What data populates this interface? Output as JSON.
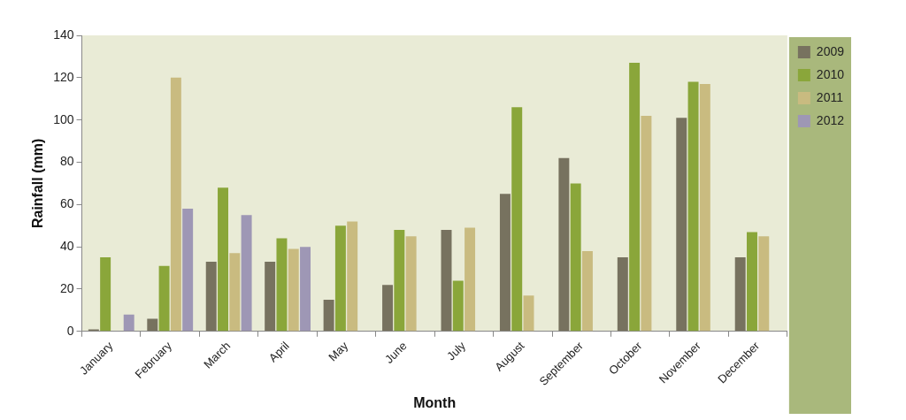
{
  "chart_data": {
    "type": "bar",
    "x_label": "Month",
    "y_label": "Rainfall (mm)",
    "categories": [
      "January",
      "February",
      "March",
      "April",
      "May",
      "June",
      "July",
      "August",
      "September",
      "October",
      "November",
      "December"
    ],
    "series": [
      {
        "name": "2009",
        "color": "#77725f",
        "values": [
          1,
          6,
          33,
          33,
          15,
          22,
          48,
          65,
          82,
          35,
          101,
          35
        ]
      },
      {
        "name": "2010",
        "color": "#8aa63a",
        "values": [
          35,
          31,
          68,
          44,
          50,
          48,
          24,
          106,
          70,
          127,
          118,
          47
        ]
      },
      {
        "name": "2011",
        "color": "#c9bb80",
        "values": [
          null,
          120,
          37,
          39,
          52,
          45,
          49,
          17,
          38,
          102,
          117,
          45
        ]
      },
      {
        "name": "2012",
        "color": "#9e97b5",
        "values": [
          8,
          58,
          55,
          40,
          null,
          null,
          null,
          null,
          null,
          null,
          null,
          null
        ]
      }
    ],
    "ylim": [
      0,
      140
    ],
    "yticks": [
      0,
      20,
      40,
      60,
      80,
      100,
      120,
      140
    ],
    "grid": false,
    "legend": "right"
  }
}
